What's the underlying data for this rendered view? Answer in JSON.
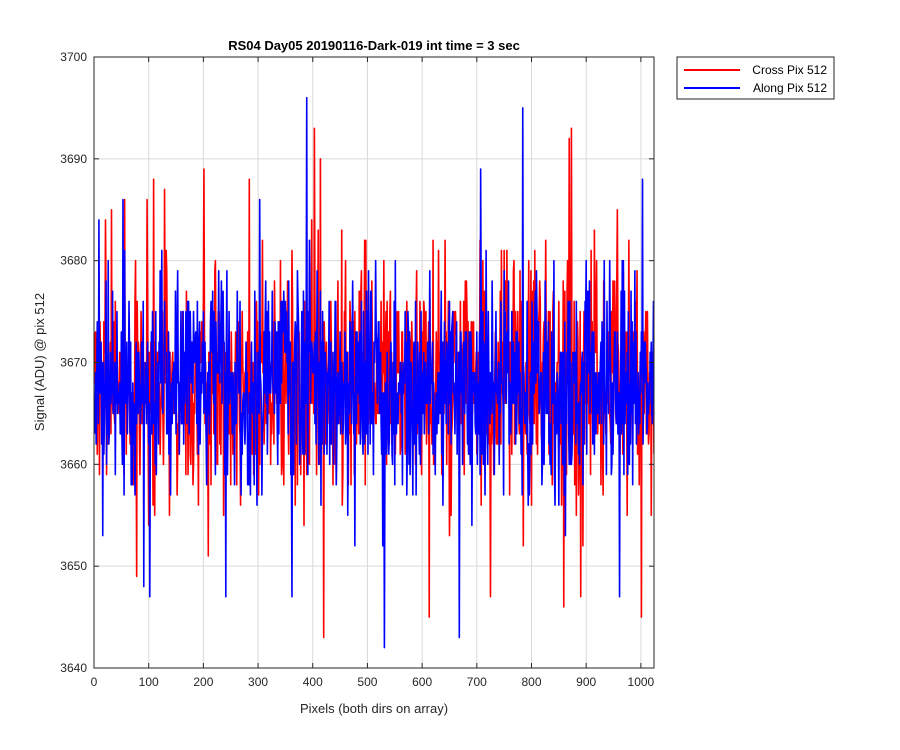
{
  "chart_data": {
    "type": "line",
    "title": "RS04 Day05 20190116-Dark-019 int time = 3 sec",
    "xlabel": "Pixels (both dirs on array)",
    "ylabel": "Signal (ADU) @ pix 512",
    "xlim": [
      0,
      1024
    ],
    "ylim": [
      3640,
      3700
    ],
    "xticks": [
      0,
      100,
      200,
      300,
      400,
      500,
      600,
      700,
      800,
      900,
      1000
    ],
    "yticks": [
      3640,
      3650,
      3660,
      3670,
      3680,
      3690,
      3700
    ],
    "grid": true,
    "legend_position": "outside-top-right",
    "series": [
      {
        "name": "Cross Pix 512",
        "color": "#ff0000",
        "approx": true,
        "mean": 3668,
        "spread": 5.5,
        "n": 1024,
        "seed": 7,
        "extremes": [
          {
            "x": 20,
            "y": 3684
          },
          {
            "x": 31,
            "y": 3685
          },
          {
            "x": 55,
            "y": 3686
          },
          {
            "x": 77,
            "y": 3649
          },
          {
            "x": 96,
            "y": 3686
          },
          {
            "x": 108,
            "y": 3688
          },
          {
            "x": 128,
            "y": 3687
          },
          {
            "x": 200,
            "y": 3689
          },
          {
            "x": 208,
            "y": 3651
          },
          {
            "x": 283,
            "y": 3688
          },
          {
            "x": 397,
            "y": 3684
          },
          {
            "x": 402,
            "y": 3693
          },
          {
            "x": 413,
            "y": 3690
          },
          {
            "x": 419,
            "y": 3643
          },
          {
            "x": 452,
            "y": 3683
          },
          {
            "x": 612,
            "y": 3645
          },
          {
            "x": 724,
            "y": 3647
          },
          {
            "x": 858,
            "y": 3646
          },
          {
            "x": 868,
            "y": 3692
          },
          {
            "x": 872,
            "y": 3693
          },
          {
            "x": 889,
            "y": 3647
          },
          {
            "x": 956,
            "y": 3685
          },
          {
            "x": 1000,
            "y": 3645
          }
        ]
      },
      {
        "name": "Along Pix 512",
        "color": "#0000ff",
        "approx": true,
        "mean": 3668,
        "spread": 5.5,
        "n": 1024,
        "seed": 19,
        "extremes": [
          {
            "x": 8,
            "y": 3684
          },
          {
            "x": 15,
            "y": 3653
          },
          {
            "x": 52,
            "y": 3686
          },
          {
            "x": 90,
            "y": 3648
          },
          {
            "x": 101,
            "y": 3647
          },
          {
            "x": 240,
            "y": 3647
          },
          {
            "x": 302,
            "y": 3686
          },
          {
            "x": 361,
            "y": 3647
          },
          {
            "x": 388,
            "y": 3696
          },
          {
            "x": 530,
            "y": 3642
          },
          {
            "x": 706,
            "y": 3689
          },
          {
            "x": 667,
            "y": 3643
          },
          {
            "x": 783,
            "y": 3695
          },
          {
            "x": 960,
            "y": 3647
          },
          {
            "x": 1002,
            "y": 3688
          }
        ]
      }
    ]
  }
}
